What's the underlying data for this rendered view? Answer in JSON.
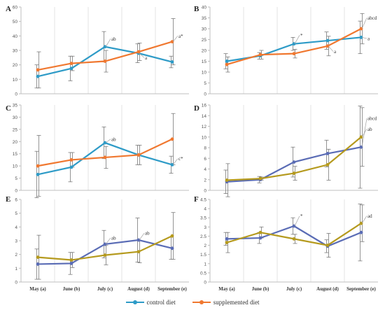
{
  "colors": {
    "control": "#2E9BC7",
    "supplemented": "#F07830",
    "control_alt": "#5A6CB5",
    "supplemented_alt": "#B59A1E"
  },
  "legend": {
    "control": "control diet",
    "supplemented": "supplemented diet"
  },
  "chart_data": [
    {
      "panel": "A",
      "type": "line",
      "categories": [
        "May (a)",
        "June (b)",
        "July (c)",
        "August (d)",
        "September (e)"
      ],
      "ylim": [
        0,
        60
      ],
      "yticks": [
        0,
        10,
        20,
        30,
        40,
        50,
        60
      ],
      "series": [
        {
          "name": "control diet",
          "values": [
            12,
            17.5,
            32.5,
            28,
            22
          ],
          "errors": [
            8,
            8.5,
            10.5,
            6.5,
            4
          ]
        },
        {
          "name": "supplemented diet",
          "values": [
            16.5,
            21,
            22.5,
            29,
            36
          ],
          "errors": [
            12.5,
            5,
            7.5,
            6,
            16
          ]
        }
      ],
      "annotations": [
        {
          "text": "ab",
          "x": 2,
          "y": 38,
          "series": 0
        },
        {
          "text": "a",
          "x": 3,
          "y": 25,
          "series": 0
        },
        {
          "text": "a*",
          "x": 4,
          "y": 40,
          "series": 1
        }
      ]
    },
    {
      "panel": "B",
      "type": "line",
      "categories": [
        "May (a)",
        "June (b)",
        "July (c)",
        "August (d)",
        "September (e)"
      ],
      "ylim": [
        0,
        40
      ],
      "yticks": [
        0,
        5,
        10,
        15,
        20,
        25,
        30,
        35,
        40
      ],
      "series": [
        {
          "name": "control diet",
          "values": [
            15,
            17.5,
            23,
            24.5,
            26
          ],
          "errors": [
            3.5,
            1.5,
            3,
            4,
            7.5
          ]
        },
        {
          "name": "supplemented diet",
          "values": [
            13.5,
            18,
            18.5,
            22,
            30
          ],
          "errors": [
            3.5,
            2,
            2,
            4.5,
            7
          ]
        }
      ],
      "annotations": [
        {
          "text": "*",
          "x": 2,
          "y": 27,
          "series": 0
        },
        {
          "text": "a",
          "x": 3,
          "y": 19.5,
          "series": 1
        },
        {
          "text": "abcd",
          "x": 4,
          "y": 35,
          "series": 1
        },
        {
          "text": "a",
          "x": 4,
          "y": 25.5,
          "series": 0
        }
      ]
    },
    {
      "panel": "C",
      "type": "line",
      "categories": [
        "May (a)",
        "June (b)",
        "July (c)",
        "August (d)",
        "September (e)"
      ],
      "ylim": [
        0,
        35
      ],
      "yticks": [
        0,
        5,
        10,
        15,
        20,
        25,
        30,
        35
      ],
      "series": [
        {
          "name": "control diet",
          "values": [
            6.5,
            9.5,
            19.5,
            14.5,
            10.5
          ],
          "errors": [
            9.5,
            6,
            6.5,
            4,
            3.5
          ]
        },
        {
          "name": "supplemented diet",
          "values": [
            10,
            12.5,
            13.5,
            14.5,
            21
          ],
          "errors": [
            12.5,
            3,
            4.5,
            4,
            10.5
          ]
        }
      ],
      "annotations": [
        {
          "text": "ab",
          "x": 2,
          "y": 21,
          "series": 0
        },
        {
          "text": "c*",
          "x": 4,
          "y": 13,
          "series": 0
        }
      ]
    },
    {
      "panel": "D",
      "type": "line",
      "categories": [
        "May (a)",
        "June (b)",
        "July (c)",
        "August (d)",
        "September (e)"
      ],
      "ylim": [
        0,
        16
      ],
      "yticks": [
        0,
        2,
        4,
        6,
        8,
        10,
        12,
        14,
        16
      ],
      "series": [
        {
          "name": "control diet",
          "values": [
            1.6,
            2,
            5.3,
            6.9,
            8.1
          ],
          "errors": [
            2.2,
            0.6,
            2.8,
            2.5,
            7.7
          ]
        },
        {
          "name": "supplemented diet",
          "values": [
            1.9,
            2.2,
            3.2,
            4.8,
            10
          ],
          "errors": [
            3.1,
            0.3,
            1.3,
            2.9,
            5.5
          ]
        }
      ],
      "annotations": [
        {
          "text": "abcd",
          "x": 4,
          "y": 13.5,
          "series": 0
        },
        {
          "text": "ab",
          "x": 4,
          "y": 11.5,
          "series": 1
        }
      ]
    },
    {
      "panel": "E",
      "type": "line",
      "categories": [
        "May (a)",
        "June (b)",
        "July (c)",
        "August (d)",
        "September (e)"
      ],
      "ylim": [
        0,
        6
      ],
      "yticks": [
        0,
        1,
        2,
        3,
        4,
        5,
        6
      ],
      "series": [
        {
          "name": "control diet",
          "values": [
            1.3,
            1.35,
            2.75,
            3.05,
            2.45
          ],
          "errors": [
            1.1,
            0.8,
            1,
            1.6,
            0.8
          ]
        },
        {
          "name": "supplemented diet",
          "values": [
            1.8,
            1.6,
            1.95,
            2.2,
            3.35
          ],
          "errors": [
            1.6,
            0.55,
            0.7,
            0.8,
            1.7
          ]
        }
      ],
      "annotations": [
        {
          "text": "ab",
          "x": 2,
          "y": 3.2,
          "series": 0
        },
        {
          "text": "ab",
          "x": 3,
          "y": 3.55,
          "series": 0
        }
      ]
    },
    {
      "panel": "F",
      "type": "line",
      "categories": [
        "May (a)",
        "June (b)",
        "July (c)",
        "August (d)",
        "September (e)"
      ],
      "ylim": [
        0,
        4.5
      ],
      "yticks": [
        0,
        0.5,
        1,
        1.5,
        2,
        2.5,
        3,
        3.5,
        4,
        4.5
      ],
      "series": [
        {
          "name": "control diet",
          "values": [
            2.35,
            2.4,
            3.05,
            1.95,
            2.7
          ],
          "errors": [
            0.35,
            0.3,
            0.45,
            0.35,
            1.55
          ]
        },
        {
          "name": "supplemented diet",
          "values": [
            2.15,
            2.7,
            2.35,
            2,
            3.2
          ],
          "errors": [
            0.55,
            0.3,
            0.25,
            0.65,
            1
          ]
        }
      ],
      "annotations": [
        {
          "text": "*",
          "x": 2,
          "y": 3.6,
          "series": 0
        },
        {
          "text": "ad",
          "x": 4,
          "y": 3.6,
          "series": 1
        }
      ]
    }
  ]
}
